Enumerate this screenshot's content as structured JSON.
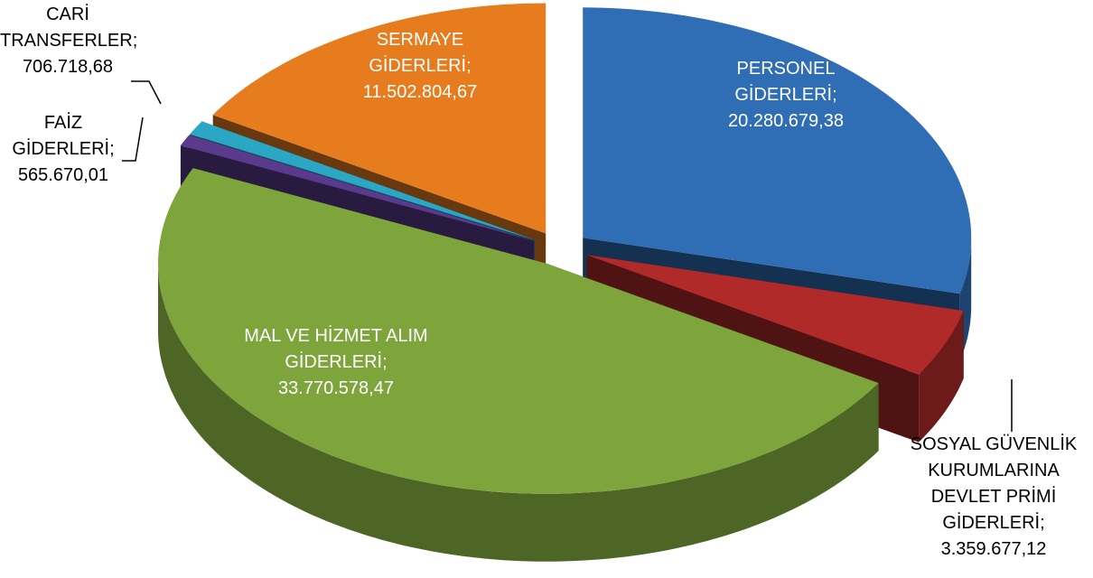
{
  "chart_data": {
    "type": "pie3d",
    "categories": [
      "PERSONEL GİDERLERİ;",
      "SOSYAL GÜVENLİK KURUMLARINA DEVLET PRİMİ GİDERLERİ;",
      "MAL VE HİZMET ALIM GİDERLERİ;",
      "FAİZ GİDERLERİ;",
      "CARİ TRANSFERLER;",
      "SERMAYE GİDERLERİ;"
    ],
    "values": [
      20280679.38,
      3359677.12,
      33770578.47,
      565670.01,
      706718.68,
      11502804.67
    ],
    "value_labels": [
      "20.280.679,38",
      "3.359.677,12",
      "33.770.578,47",
      "565.670,01",
      "706.718,68",
      "11.502.804,67"
    ],
    "colors": [
      "#2f6db5",
      "#b02a2a",
      "#7ea43c",
      "#5a3a8c",
      "#2ba6c4",
      "#e77c1f"
    ]
  }
}
